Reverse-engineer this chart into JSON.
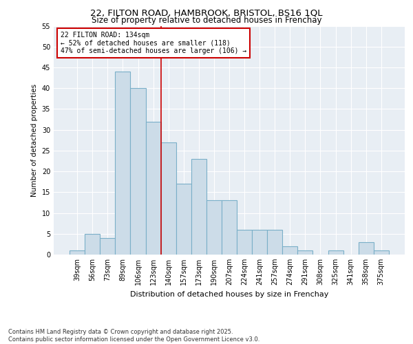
{
  "title1": "22, FILTON ROAD, HAMBROOK, BRISTOL, BS16 1QL",
  "title2": "Size of property relative to detached houses in Frenchay",
  "xlabel": "Distribution of detached houses by size in Frenchay",
  "ylabel": "Number of detached properties",
  "categories": [
    "39sqm",
    "56sqm",
    "73sqm",
    "89sqm",
    "106sqm",
    "123sqm",
    "140sqm",
    "157sqm",
    "173sqm",
    "190sqm",
    "207sqm",
    "224sqm",
    "241sqm",
    "257sqm",
    "274sqm",
    "291sqm",
    "308sqm",
    "325sqm",
    "341sqm",
    "358sqm",
    "375sqm"
  ],
  "values": [
    1,
    5,
    4,
    44,
    40,
    32,
    27,
    17,
    23,
    13,
    13,
    6,
    6,
    6,
    2,
    1,
    0,
    1,
    0,
    3,
    1
  ],
  "bar_color": "#ccdce8",
  "bar_edge_color": "#7aafc8",
  "vline_color": "#cc0000",
  "vline_x_idx": 6,
  "annotation_text": "22 FILTON ROAD: 134sqm\n← 52% of detached houses are smaller (118)\n47% of semi-detached houses are larger (106) →",
  "annotation_box_facecolor": "white",
  "annotation_box_edgecolor": "#cc0000",
  "ylim": [
    0,
    55
  ],
  "yticks": [
    0,
    5,
    10,
    15,
    20,
    25,
    30,
    35,
    40,
    45,
    50,
    55
  ],
  "fig_bg": "#ffffff",
  "plot_bg": "#e8eef4",
  "grid_color": "#ffffff",
  "footer": "Contains HM Land Registry data © Crown copyright and database right 2025.\nContains public sector information licensed under the Open Government Licence v3.0."
}
